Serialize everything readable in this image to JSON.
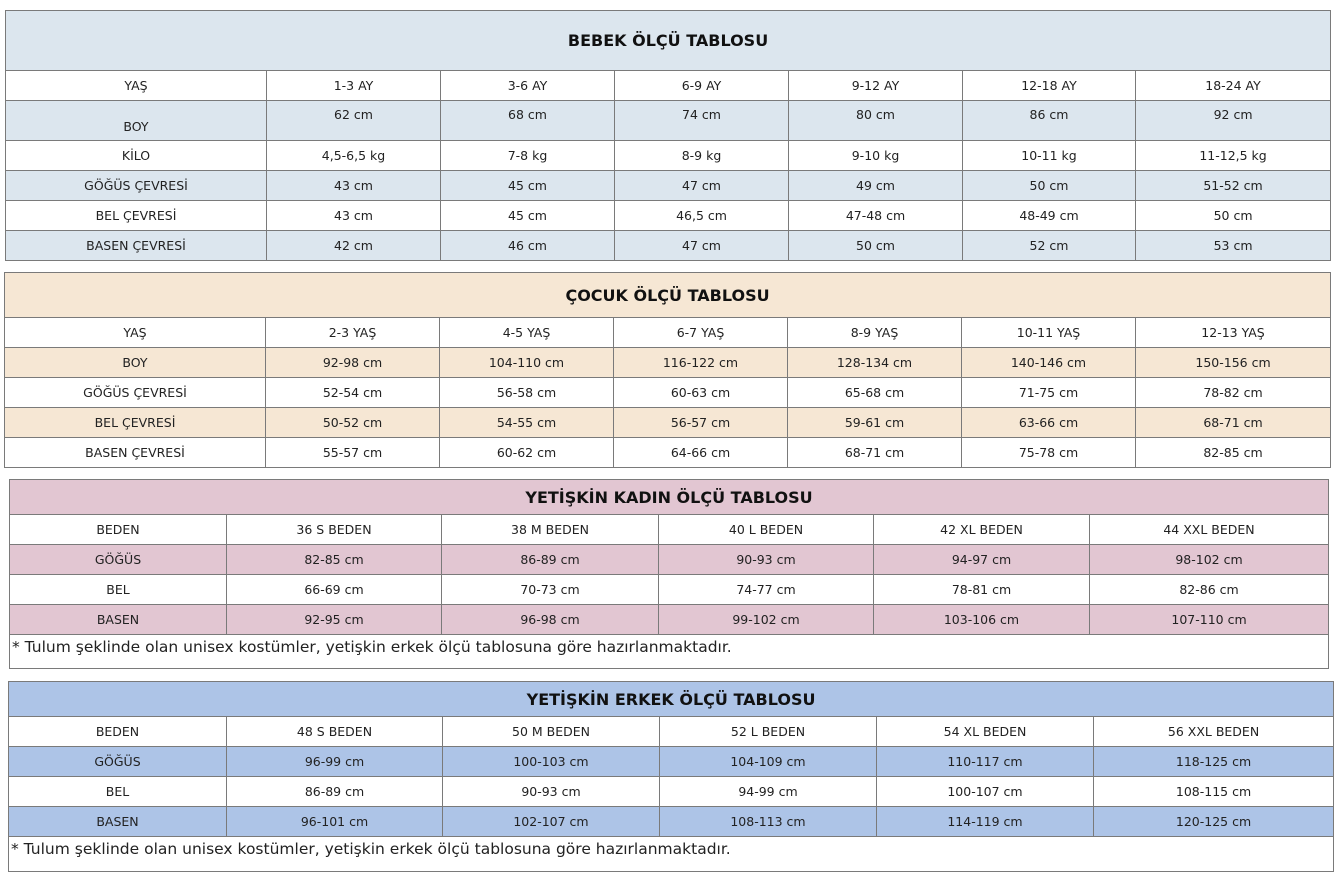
{
  "colors": {
    "bebek": "#dce6ee",
    "cocuk": "#f6e7d4",
    "kadin": "#e2c6d2",
    "erkek": "#adc4e7",
    "border": "#7a7a7a"
  },
  "tables": [
    {
      "title": "BEBEK ÖLÇÜ TABLOSU",
      "rows": [
        [
          "YAŞ",
          "1-3 AY",
          "3-6 AY",
          "6-9 AY",
          "9-12 AY",
          "12-18 AY",
          "18-24 AY"
        ],
        [
          "BOY",
          "62 cm",
          "68 cm",
          "74 cm",
          "80 cm",
          "86 cm",
          "92 cm"
        ],
        [
          "KİLO",
          "4,5-6,5 kg",
          "7-8 kg",
          "8-9 kg",
          "9-10 kg",
          "10-11 kg",
          "11-12,5 kg"
        ],
        [
          "GÖĞÜS ÇEVRESİ",
          "43 cm",
          "45 cm",
          "47 cm",
          "49 cm",
          "50 cm",
          "51-52 cm"
        ],
        [
          "BEL ÇEVRESİ",
          "43 cm",
          "45 cm",
          "46,5 cm",
          "47-48 cm",
          "48-49 cm",
          "50 cm"
        ],
        [
          "BASEN ÇEVRESİ",
          "42 cm",
          "46 cm",
          "47 cm",
          "50 cm",
          "52 cm",
          "53 cm"
        ]
      ]
    },
    {
      "title": "ÇOCUK ÖLÇÜ TABLOSU",
      "rows": [
        [
          "YAŞ",
          "2-3 YAŞ",
          "4-5 YAŞ",
          "6-7 YAŞ",
          "8-9 YAŞ",
          "10-11 YAŞ",
          "12-13 YAŞ"
        ],
        [
          "BOY",
          "92-98 cm",
          "104-110 cm",
          "116-122 cm",
          "128-134 cm",
          "140-146 cm",
          "150-156 cm"
        ],
        [
          "GÖĞÜS ÇEVRESİ",
          "52-54 cm",
          "56-58 cm",
          "60-63 cm",
          "65-68 cm",
          "71-75 cm",
          "78-82 cm"
        ],
        [
          "BEL ÇEVRESİ",
          "50-52 cm",
          "54-55 cm",
          "56-57 cm",
          "59-61 cm",
          "63-66 cm",
          "68-71 cm"
        ],
        [
          "BASEN ÇEVRESİ",
          "55-57 cm",
          "60-62 cm",
          "64-66 cm",
          "68-71 cm",
          "75-78 cm",
          "82-85 cm"
        ]
      ]
    },
    {
      "title": "YETİŞKİN KADIN ÖLÇÜ TABLOSU",
      "rows": [
        [
          "BEDEN",
          "36 S BEDEN",
          "38 M BEDEN",
          "40 L BEDEN",
          "42 XL BEDEN",
          "44 XXL BEDEN"
        ],
        [
          "GÖĞÜS",
          "82-85 cm",
          "86-89 cm",
          "90-93 cm",
          "94-97 cm",
          "98-102 cm"
        ],
        [
          "BEL",
          "66-69 cm",
          "70-73 cm",
          "74-77 cm",
          "78-81 cm",
          "82-86 cm"
        ],
        [
          "BASEN",
          "92-95 cm",
          "96-98 cm",
          "99-102 cm",
          "103-106 cm",
          "107-110 cm"
        ]
      ],
      "note": "* Tulum şeklinde olan unisex kostümler, yetişkin erkek ölçü tablosuna göre hazırlanmaktadır."
    },
    {
      "title": "YETİŞKİN ERKEK ÖLÇÜ TABLOSU",
      "rows": [
        [
          "BEDEN",
          "48 S BEDEN",
          "50 M BEDEN",
          "52 L BEDEN",
          "54 XL BEDEN",
          "56 XXL BEDEN"
        ],
        [
          "GÖĞÜS",
          "96-99 cm",
          "100-103 cm",
          "104-109 cm",
          "110-117 cm",
          "118-125 cm"
        ],
        [
          "BEL",
          "86-89 cm",
          "90-93 cm",
          "94-99 cm",
          "100-107 cm",
          "108-115 cm"
        ],
        [
          "BASEN",
          "96-101 cm",
          "102-107 cm",
          "108-113 cm",
          "114-119 cm",
          "120-125 cm"
        ]
      ],
      "note": "* Tulum şeklinde olan unisex kostümler, yetişkin erkek ölçü  tablosuna göre hazırlanmaktadır."
    }
  ]
}
